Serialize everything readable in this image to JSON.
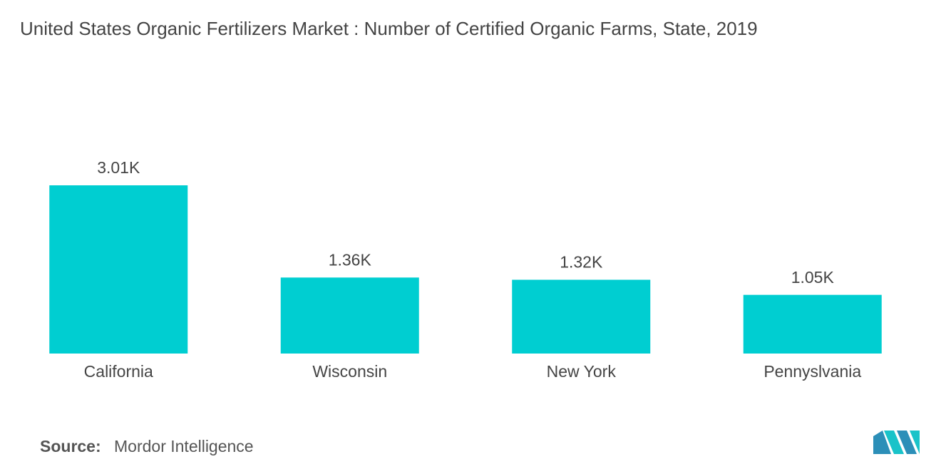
{
  "chart_data": {
    "type": "bar",
    "title": "United States Organic Fertilizers Market : Number of Certified Organic Farms, State, 2019",
    "categories": [
      "California",
      "Wisconsin",
      "New York",
      "Pennyslvania"
    ],
    "values": [
      3010,
      1360,
      1320,
      1050
    ],
    "value_labels": [
      "3.01K",
      "1.36K",
      "1.32K",
      "1.05K"
    ],
    "color": "#00ced1"
  },
  "footer": {
    "source_label": "Source:",
    "source": "Mordor Intelligence"
  }
}
